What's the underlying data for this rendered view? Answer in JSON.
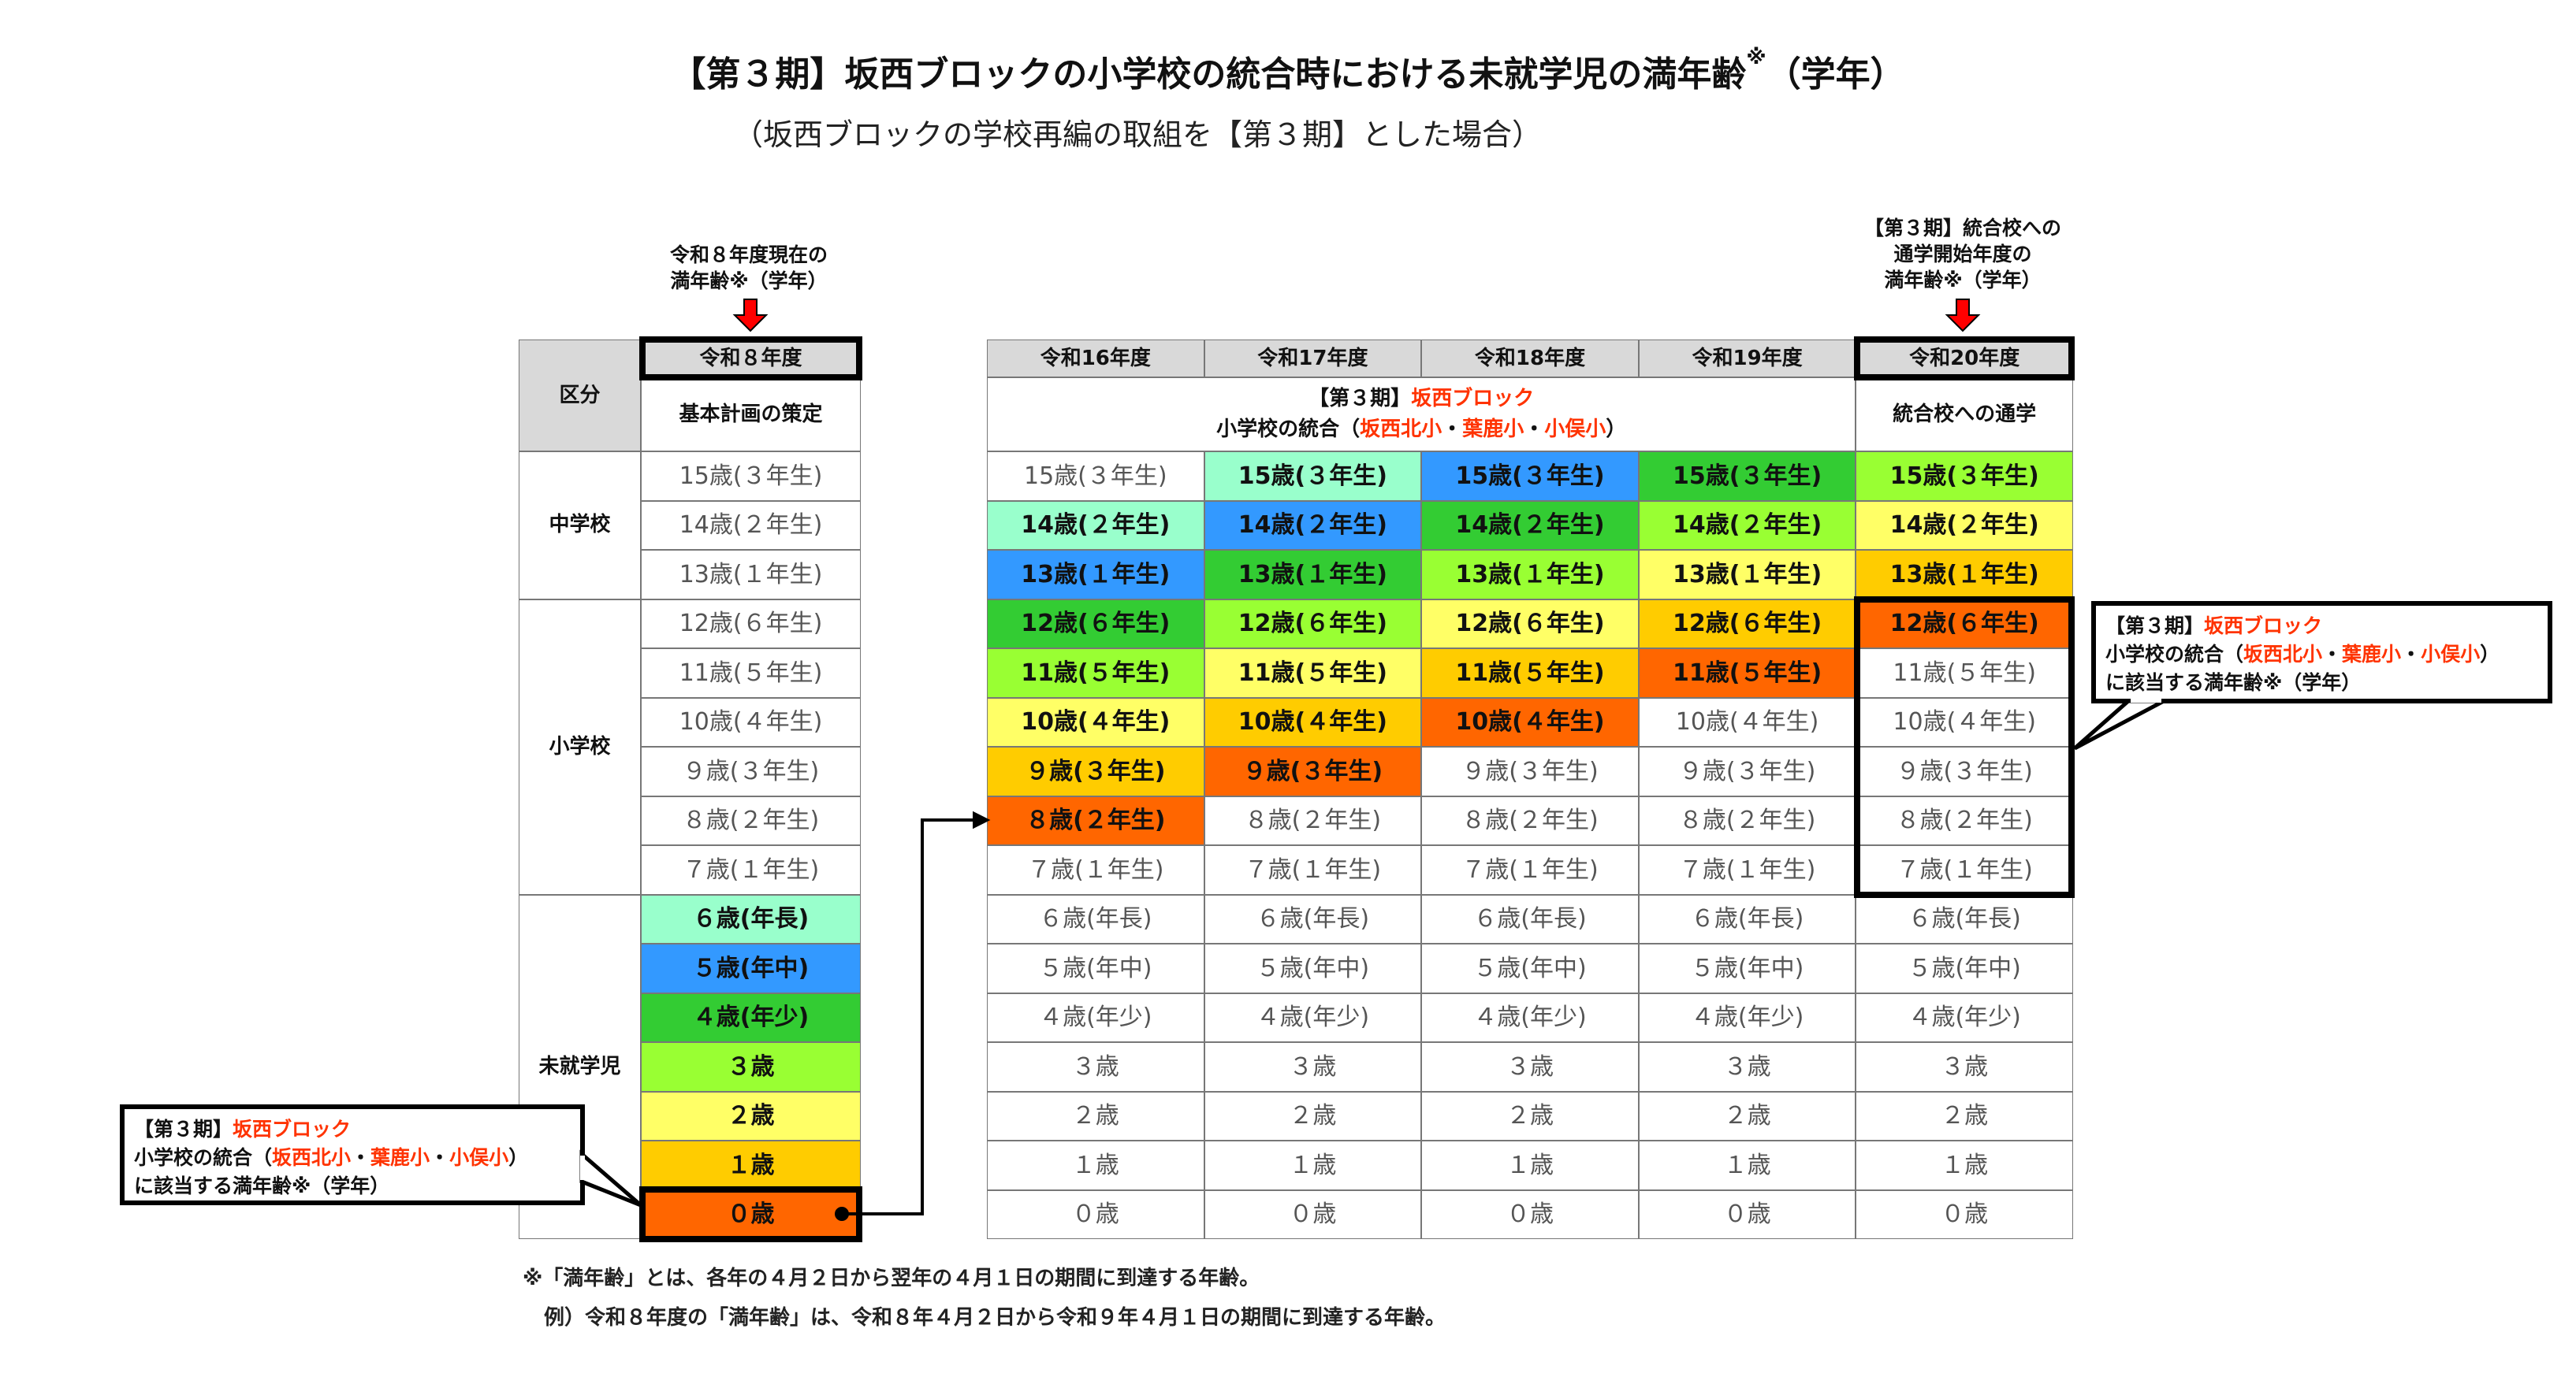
{
  "title": "【第３期】坂西ブロックの小学校の統合時における未就学児の満年齢",
  "title_mark": "※",
  "title_suffix": "（学年）",
  "subtitle": "（坂西ブロックの学校再編の取組を【第３期】とした場合）",
  "left_note": [
    "令和８年度現在の",
    "満年齢※（学年）"
  ],
  "right_note": [
    "【第３期】統合校への",
    "通学開始年度の",
    "満年齢※（学年）"
  ],
  "left_table": {
    "category_header": "区分",
    "year_header": "令和８年度",
    "sub_header": "基本計画の策定",
    "groups": [
      {
        "label": "中学校",
        "rows": 3
      },
      {
        "label": "小学校",
        "rows": 6
      },
      {
        "label": "未就学児",
        "rows": 7
      }
    ]
  },
  "rows": [
    "15歳(３年生)",
    "14歳(２年生)",
    "13歳(１年生)",
    "12歳(６年生)",
    "11歳(５年生)",
    "10歳(４年生)",
    "９歳(３年生)",
    "８歳(２年生)",
    "７歳(１年生)",
    "６歳(年長)",
    "５歳(年中)",
    "４歳(年少)",
    "３歳",
    "２歳",
    "１歳",
    "０歳"
  ],
  "right_table": {
    "years": [
      "令和16年度",
      "令和17年度",
      "令和18年度",
      "令和19年度",
      "令和20年度"
    ],
    "merged_header": {
      "line1_a": "【第３期】",
      "line1_b": "坂西ブロック",
      "line2_a": "小学校の統合（",
      "school1": "坂西北小",
      "sep1": "・",
      "school2": "葉鹿小",
      "sep2": "・",
      "school3": "小俣小",
      "line2_end": "）"
    },
    "last_header": "統合校への通学"
  },
  "cohort_colors": {
    "6": "#99ffcc",
    "5": "#3399ff",
    "4": "#33cc33",
    "3": "#99ff33",
    "2": "#ffff66",
    "1": "#ffcc00",
    "0": "#ff6600"
  },
  "callout": {
    "line1_a": "【第３期】",
    "line1_b": "坂西ブロック",
    "line2_a": "小学校の統合（",
    "school1": "坂西北小",
    "sep1": "・",
    "school2": "葉鹿小",
    "sep2": "・",
    "school3": "小俣小",
    "line2_end": "）",
    "line3": "に該当する満年齢※（学年）"
  },
  "footnote": [
    "※「満年齢」とは、各年の４月２日から翌年の４月１日の期間に到達する年齢。",
    "例）令和８年度の「満年齢」は、令和８年４月２日から令和９年４月１日の期間に到達する年齢。"
  ],
  "accent_red": "#ff3300"
}
